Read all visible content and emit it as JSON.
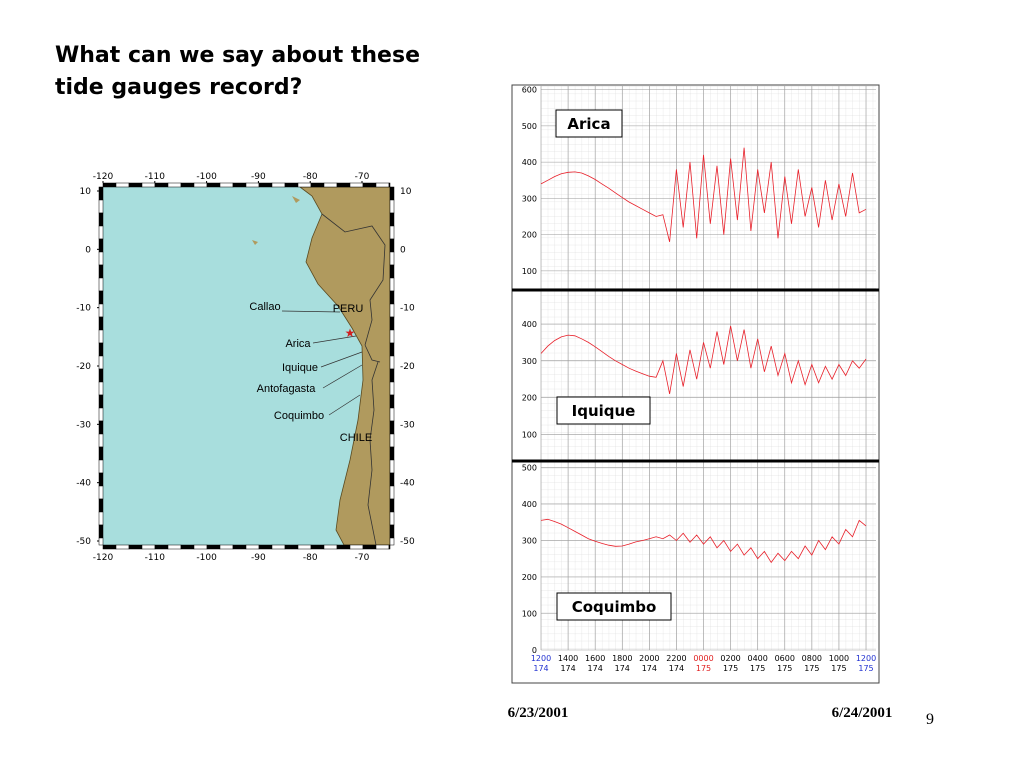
{
  "title_lines": [
    "What can we say about these",
    "tide gauges record?"
  ],
  "map": {
    "xticks": [
      -120,
      -110,
      -100,
      -90,
      -80,
      -70
    ],
    "yticks": [
      10,
      0,
      -10,
      -20,
      -30,
      -40,
      -50
    ],
    "places": [
      "Callao",
      "PERU",
      "Arica",
      "Iquique",
      "Antofagasta",
      "Coquimbo",
      "CHILE"
    ]
  },
  "chart_data": [
    {
      "type": "line",
      "name": "Arica",
      "color": "#e8202a",
      "ylim": [
        50,
        610
      ],
      "yticks": [
        100,
        200,
        300,
        400,
        500,
        600
      ],
      "values": [
        340,
        350,
        360,
        368,
        372,
        373,
        370,
        362,
        352,
        340,
        328,
        315,
        302,
        290,
        280,
        270,
        260,
        250,
        255,
        180,
        380,
        220,
        400,
        190,
        420,
        230,
        390,
        200,
        410,
        240,
        440,
        210,
        380,
        260,
        400,
        190,
        360,
        230,
        380,
        250,
        330,
        220,
        350,
        240,
        340,
        250,
        370,
        260,
        270
      ]
    },
    {
      "type": "line",
      "name": "Iquique",
      "color": "#e8202a",
      "ylim": [
        30,
        490
      ],
      "yticks": [
        100,
        200,
        300,
        400
      ],
      "values": [
        320,
        340,
        355,
        365,
        370,
        368,
        360,
        350,
        338,
        325,
        312,
        300,
        290,
        280,
        272,
        265,
        258,
        255,
        300,
        210,
        320,
        230,
        330,
        250,
        350,
        280,
        380,
        290,
        395,
        300,
        385,
        280,
        360,
        270,
        340,
        260,
        320,
        240,
        300,
        235,
        290,
        240,
        285,
        250,
        290,
        260,
        300,
        280,
        305
      ]
    },
    {
      "type": "line",
      "name": "Coquimbo",
      "color": "#e8202a",
      "ylim": [
        0,
        515
      ],
      "yticks": [
        0,
        100,
        200,
        300,
        400,
        500
      ],
      "values": [
        355,
        358,
        352,
        345,
        335,
        325,
        315,
        305,
        298,
        292,
        287,
        284,
        285,
        290,
        296,
        300,
        305,
        310,
        305,
        315,
        300,
        320,
        295,
        315,
        290,
        310,
        280,
        300,
        270,
        290,
        260,
        280,
        250,
        270,
        240,
        265,
        245,
        270,
        250,
        285,
        260,
        300,
        275,
        310,
        290,
        330,
        310,
        355,
        340
      ]
    }
  ],
  "x_labels": [
    {
      "time": "1200",
      "day": "174",
      "color": "#2030d0"
    },
    {
      "time": "1400",
      "day": "174",
      "color": "#000000"
    },
    {
      "time": "1600",
      "day": "174",
      "color": "#000000"
    },
    {
      "time": "1800",
      "day": "174",
      "color": "#000000"
    },
    {
      "time": "2000",
      "day": "174",
      "color": "#000000"
    },
    {
      "time": "2200",
      "day": "174",
      "color": "#000000"
    },
    {
      "time": "0000",
      "day": "175",
      "color": "#e02020"
    },
    {
      "time": "0200",
      "day": "175",
      "color": "#000000"
    },
    {
      "time": "0400",
      "day": "175",
      "color": "#000000"
    },
    {
      "time": "0600",
      "day": "175",
      "color": "#000000"
    },
    {
      "time": "0800",
      "day": "175",
      "color": "#000000"
    },
    {
      "time": "1000",
      "day": "175",
      "color": "#000000"
    },
    {
      "time": "1200",
      "day": "175",
      "color": "#2030d0"
    }
  ],
  "dates": [
    "6/23/2001",
    "6/24/2001"
  ],
  "page_number": "9"
}
